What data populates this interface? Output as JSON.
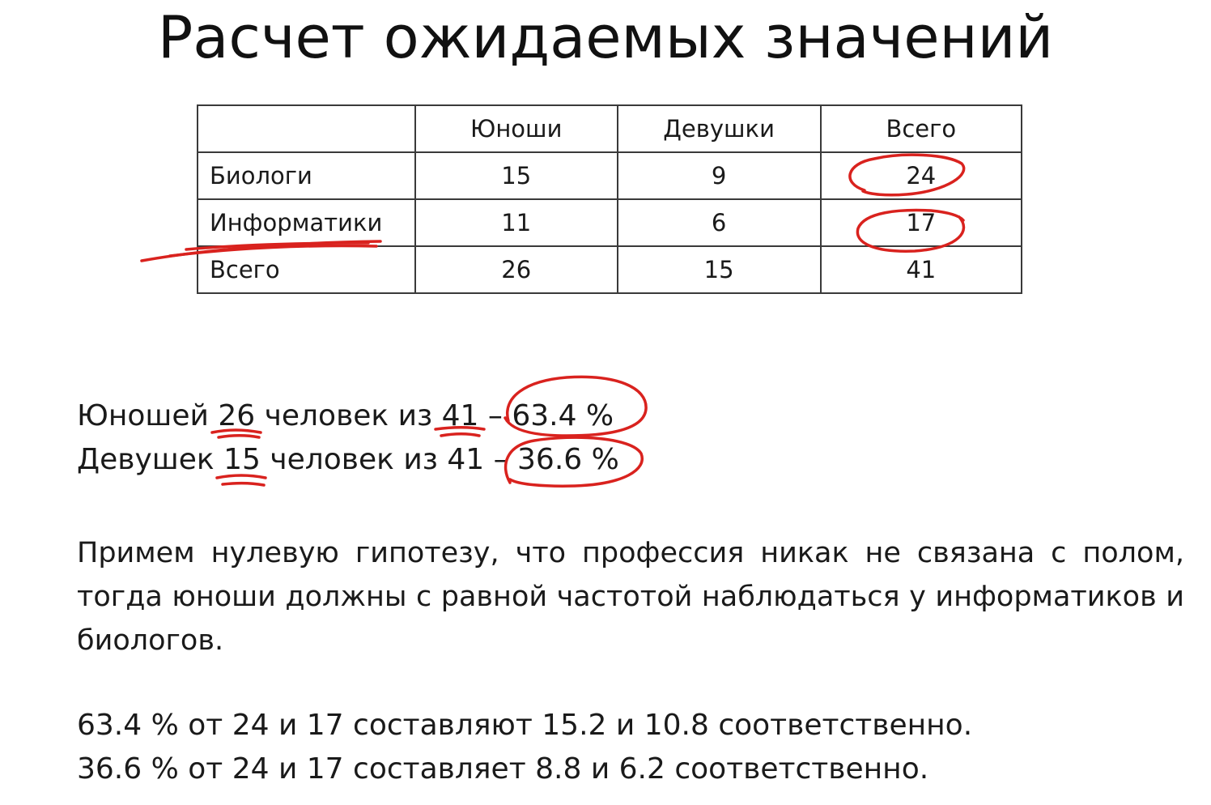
{
  "title": "Расчет ожидаемых значений",
  "table": {
    "headers": [
      "",
      "Юноши",
      "Девушки",
      "Всего"
    ],
    "rows": [
      [
        "Биологи",
        "15",
        "9",
        "24"
      ],
      [
        "Информатики",
        "11",
        "6",
        "17"
      ],
      [
        "Всего",
        "26",
        "15",
        "41"
      ]
    ]
  },
  "lines": {
    "line1": {
      "a": "Юношей ",
      "num": "26",
      "b": " человек из ",
      "total": "41",
      "c": " – ",
      "pct": "63.4 %"
    },
    "line2": {
      "a": "Девушек ",
      "num": "15",
      "b": " человек из 41 – ",
      "pct": "36.6 %"
    }
  },
  "hypothesis": "Примем нулевую гипотезу, что профессия никак не связана с полом, тогда юноши должны с равной частотой наблюдаться у информатиков и биологов.",
  "results": {
    "r1": "63.4 % от 24 и 17 составляют 15.2 и 10.8 соответственно.",
    "r2": "36.6 % от 24 и 17 составляет 8.8 и 6.2 соответственно."
  },
  "annotation_color": "#d9221e"
}
